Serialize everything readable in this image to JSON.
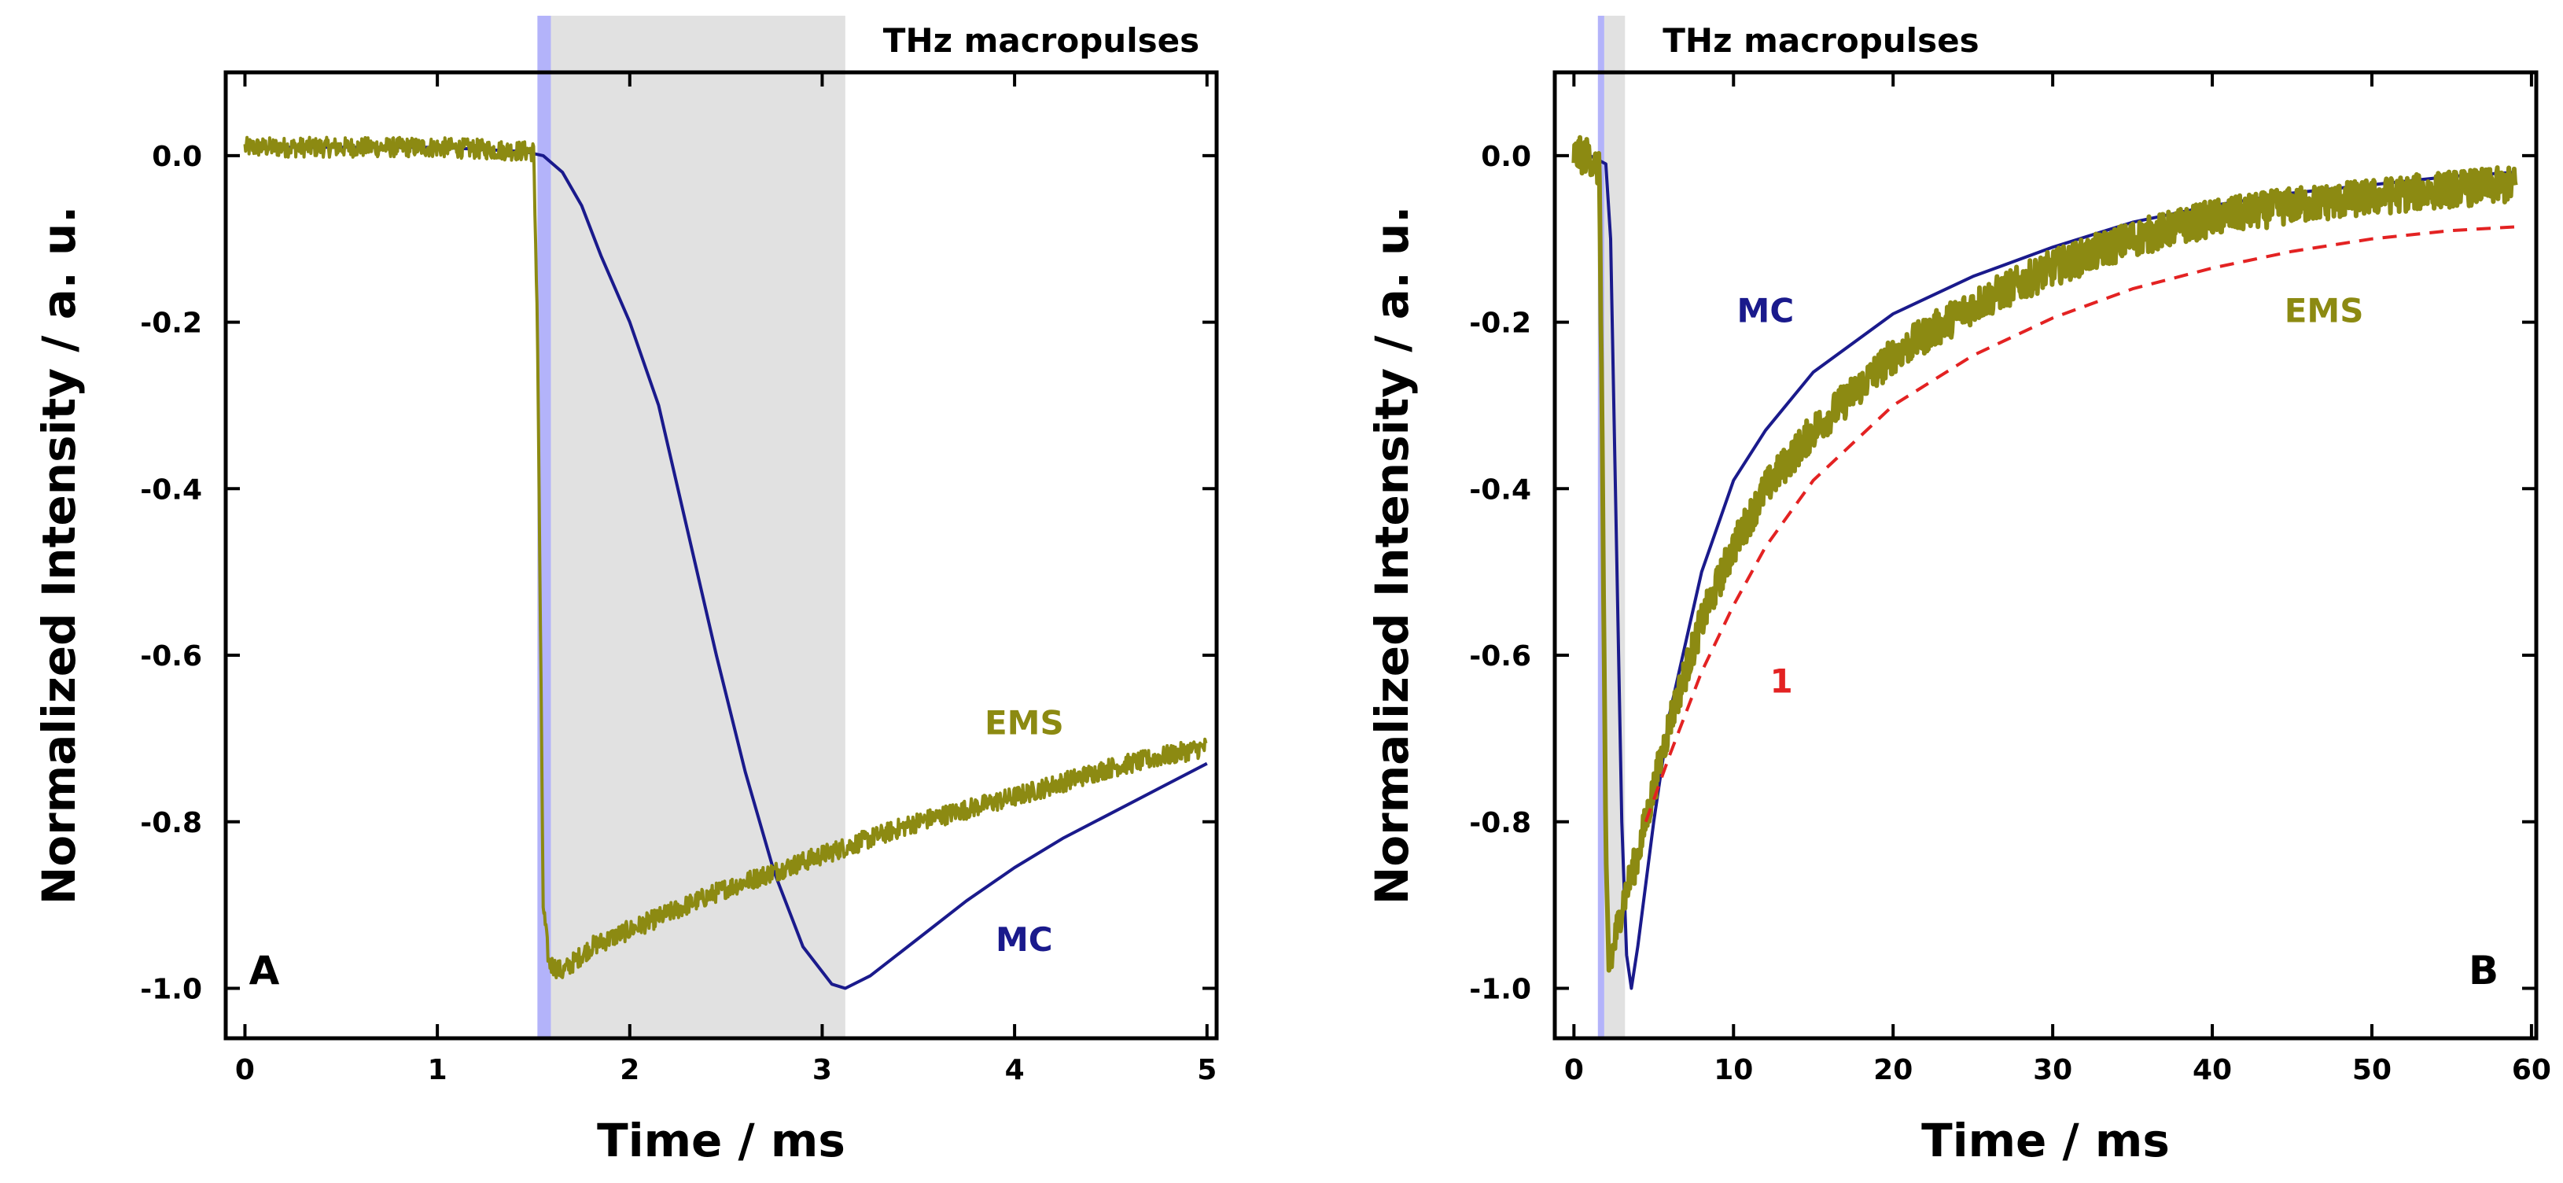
{
  "chart_data": [
    {
      "panel": "A",
      "type": "line",
      "xlabel": "Time / ms",
      "ylabel": "Normalized Intensity / a. u.",
      "xlim": [
        -0.1,
        5.05
      ],
      "ylim": [
        -1.06,
        0.1
      ],
      "xticks": [
        0,
        1,
        2,
        3,
        4,
        5
      ],
      "yticks": [
        0.0,
        -0.2,
        -0.4,
        -0.6,
        -0.8,
        -1.0
      ],
      "xtick_labels": [
        "0",
        "1",
        "2",
        "3",
        "4",
        "5"
      ],
      "ytick_labels": [
        "0.0",
        "-0.2",
        "-0.4",
        "-0.6",
        "-0.8",
        "-1.0"
      ],
      "shaded_regions": [
        {
          "x": [
            1.52,
            1.59
          ],
          "color": "#b3b3fa"
        },
        {
          "x": [
            1.59,
            3.12
          ],
          "color": "#e1e1e1",
          "label": "THz macropulses"
        }
      ],
      "series": [
        {
          "name": "MC",
          "color": "#1a1a8c",
          "noise": 0.0,
          "x": [
            0,
            0.5,
            1.0,
            1.45,
            1.55,
            1.65,
            1.75,
            1.85,
            2.0,
            2.15,
            2.3,
            2.45,
            2.6,
            2.75,
            2.9,
            3.05,
            3.12,
            3.25,
            3.5,
            3.75,
            4.0,
            4.25,
            4.5,
            4.75,
            5.0
          ],
          "y": [
            0.01,
            0.01,
            0.01,
            0.005,
            0.0,
            -0.02,
            -0.06,
            -0.12,
            -0.2,
            -0.3,
            -0.45,
            -0.6,
            -0.74,
            -0.86,
            -0.95,
            -0.995,
            -1.0,
            -0.985,
            -0.94,
            -0.895,
            -0.855,
            -0.82,
            -0.79,
            -0.76,
            -0.73
          ]
        },
        {
          "name": "EMS",
          "color": "#8c8a12",
          "noise": 0.012,
          "x": [
            0,
            0.5,
            1.0,
            1.5,
            1.52,
            1.55,
            1.58,
            1.65,
            1.8,
            2.0,
            2.5,
            3.0,
            3.5,
            4.0,
            4.5,
            5.0
          ],
          "y": [
            0.01,
            0.01,
            0.01,
            0.005,
            -0.2,
            -0.9,
            -0.97,
            -0.98,
            -0.95,
            -0.93,
            -0.88,
            -0.84,
            -0.8,
            -0.77,
            -0.735,
            -0.71
          ]
        }
      ],
      "annotations": [
        {
          "text": "EMS",
          "x": 4.05,
          "y": -0.695,
          "color": "#8c8a12"
        },
        {
          "text": "MC",
          "x": 4.05,
          "y": -0.955,
          "color": "#1a1a8c"
        },
        {
          "text": "A",
          "x": 0.1,
          "y": -0.995,
          "color": "#000000"
        }
      ]
    },
    {
      "panel": "B",
      "type": "line",
      "xlabel": "Time / ms",
      "ylabel": "Normalized Intensity / a. u.",
      "xlim": [
        -1.2,
        60.3
      ],
      "ylim": [
        -1.06,
        0.1
      ],
      "xticks": [
        0,
        10,
        20,
        30,
        40,
        50,
        60
      ],
      "yticks": [
        0.0,
        -0.2,
        -0.4,
        -0.6,
        -0.8,
        -1.0
      ],
      "xtick_labels": [
        "0",
        "10",
        "20",
        "30",
        "40",
        "50",
        "60"
      ],
      "ytick_labels": [
        "0.0",
        "-0.2",
        "-0.4",
        "-0.6",
        "-0.8",
        "-1.0"
      ],
      "shaded_regions": [
        {
          "x": [
            1.5,
            1.9
          ],
          "color": "#b3b3fa"
        },
        {
          "x": [
            1.9,
            3.2
          ],
          "color": "#e1e1e1",
          "label": "THz macropulses"
        }
      ],
      "series": [
        {
          "name": "MC",
          "color": "#1a1a8c",
          "noise": 0.0,
          "x": [
            0,
            1.0,
            2.0,
            2.3,
            2.6,
            3.0,
            3.3,
            3.6,
            4.0,
            5.0,
            6.0,
            8.0,
            10.0,
            12.0,
            15.0,
            20.0,
            25.0,
            30.0,
            35.0,
            40.0,
            45.0,
            50.0,
            55.0,
            59.0
          ],
          "y": [
            0.0,
            0.0,
            -0.01,
            -0.1,
            -0.4,
            -0.8,
            -0.96,
            -1.0,
            -0.95,
            -0.8,
            -0.67,
            -0.5,
            -0.39,
            -0.33,
            -0.26,
            -0.19,
            -0.145,
            -0.11,
            -0.08,
            -0.06,
            -0.045,
            -0.035,
            -0.025,
            -0.02
          ]
        },
        {
          "name": "EMS",
          "color": "#8c8a12",
          "noise": 0.022,
          "x": [
            0,
            1.0,
            1.6,
            1.8,
            2.0,
            2.2,
            2.5,
            3.0,
            4.0,
            5.0,
            6.0,
            8.0,
            10.0,
            12.0,
            15.0,
            20.0,
            25.0,
            30.0,
            35.0,
            40.0,
            45.0,
            50.0,
            55.0,
            59.0
          ],
          "y": [
            0.0,
            0.0,
            -0.02,
            -0.4,
            -0.85,
            -0.98,
            -0.95,
            -0.9,
            -0.84,
            -0.76,
            -0.68,
            -0.56,
            -0.47,
            -0.4,
            -0.33,
            -0.24,
            -0.18,
            -0.135,
            -0.1,
            -0.075,
            -0.06,
            -0.05,
            -0.04,
            -0.035
          ]
        },
        {
          "name": "1",
          "color": "#e32222",
          "dash": true,
          "noise": 0.0,
          "x": [
            4.5,
            6.0,
            8.0,
            10.0,
            12.0,
            15.0,
            20.0,
            25.0,
            30.0,
            35.0,
            40.0,
            45.0,
            50.0,
            55.0,
            59.5
          ],
          "y": [
            -0.8,
            -0.72,
            -0.62,
            -0.54,
            -0.47,
            -0.39,
            -0.3,
            -0.24,
            -0.195,
            -0.16,
            -0.135,
            -0.115,
            -0.1,
            -0.09,
            -0.085
          ]
        }
      ],
      "annotations": [
        {
          "text": "MC",
          "x": 12.0,
          "y": -0.2,
          "color": "#1a1a8c"
        },
        {
          "text": "EMS",
          "x": 47.0,
          "y": -0.2,
          "color": "#8c8a12"
        },
        {
          "text": "1",
          "x": 13.0,
          "y": -0.645,
          "color": "#e32222"
        },
        {
          "text": "B",
          "x": 57.0,
          "y": -0.995,
          "color": "#000000"
        }
      ]
    }
  ]
}
